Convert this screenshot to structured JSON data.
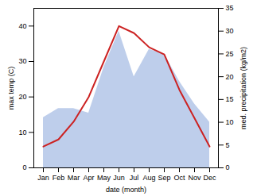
{
  "chart_data": {
    "type": "line",
    "xlabel": "date (month)",
    "ylabel": "max temp (C)",
    "y2label": "med. precipitation (kg/m2)",
    "categories": [
      "Jan",
      "Feb",
      "Mar",
      "Apr",
      "May",
      "Jun",
      "Jul",
      "Aug",
      "Sep",
      "Oct",
      "Nov",
      "Dec"
    ],
    "series": [
      {
        "type": "area",
        "axis": "y2",
        "color": "#b3c6e8",
        "values": [
          11,
          13,
          13,
          12,
          22,
          30,
          20,
          26,
          25,
          19,
          14,
          10
        ]
      },
      {
        "type": "line",
        "color": "#cc2222",
        "values": [
          6,
          8,
          13,
          20,
          30,
          40,
          38,
          34,
          32,
          22,
          14,
          6
        ]
      }
    ],
    "ylim": [
      0,
      45
    ],
    "yticks": [
      0,
      10,
      20,
      30,
      40
    ],
    "y2lim": [
      0,
      35
    ],
    "y2ticks": [
      0,
      5,
      10,
      15,
      20,
      25,
      30,
      35
    ]
  }
}
